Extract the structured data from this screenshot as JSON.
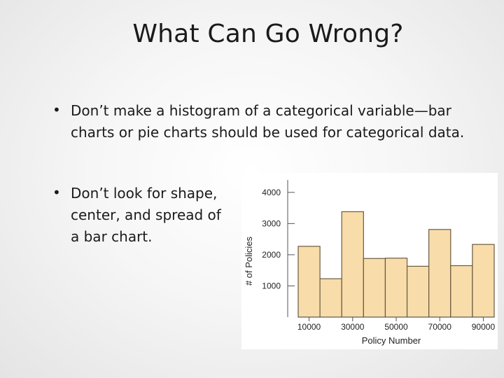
{
  "slide": {
    "title": "What Can Go Wrong?",
    "bullets": [
      "Don’t make a histogram of a categorical variable—bar charts or pie charts should be used for categorical data.",
      "Don’t look for shape, center, and spread of a bar chart."
    ],
    "bullet_symbol": "•"
  },
  "chart_data": {
    "type": "bar",
    "categories": [
      "10000",
      "20000",
      "30000",
      "40000",
      "50000",
      "60000",
      "70000",
      "80000",
      "90000"
    ],
    "values": [
      2270,
      1230,
      3380,
      1880,
      1890,
      1630,
      2810,
      1650,
      2330
    ],
    "xlabel": "Policy Number",
    "ylabel": "# of Policies",
    "xticks": [
      "10000",
      "30000",
      "50000",
      "70000",
      "90000"
    ],
    "yticks": [
      "1000",
      "2000",
      "3000",
      "4000"
    ],
    "ylim": [
      0,
      4400
    ],
    "bar_color": "#f8dcaa",
    "bar_edge": "#6a5a40",
    "grid": false
  }
}
